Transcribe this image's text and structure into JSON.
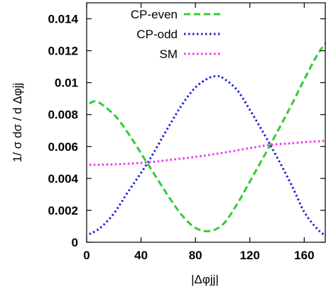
{
  "chart_data": {
    "type": "line",
    "xlabel": "|Δφjj|",
    "ylabel": "1/ σ dσ / d Δφjj",
    "xlim": [
      0,
      176
    ],
    "ylim": [
      0,
      0.015
    ],
    "x_ticks": [
      "0",
      "40",
      "80",
      "120",
      "160"
    ],
    "y_ticks": [
      "0",
      "0.002",
      "0.004",
      "0.006",
      "0.008",
      "0.01",
      "0.012",
      "0.014"
    ],
    "legend_position": "top-left",
    "grid": false,
    "series": [
      {
        "name": "CP-even",
        "color": "#33cc33",
        "style": "dashed",
        "x": [
          2,
          8,
          20,
          30,
          45,
          60,
          70,
          80,
          90,
          100,
          110,
          120,
          135,
          150,
          160,
          170,
          176
        ],
        "y": [
          0.0087,
          0.0088,
          0.008,
          0.0069,
          0.0049,
          0.0029,
          0.0017,
          0.0009,
          0.0007,
          0.0011,
          0.0023,
          0.0038,
          0.0061,
          0.0085,
          0.0102,
          0.0118,
          0.0125
        ]
      },
      {
        "name": "CP-odd",
        "color": "#2222dd",
        "style": "dotted",
        "x": [
          2,
          10,
          20,
          30,
          45,
          60,
          70,
          80,
          90,
          96,
          100,
          110,
          120,
          135,
          150,
          160,
          170,
          176
        ],
        "y": [
          0.0005,
          0.0009,
          0.0018,
          0.0031,
          0.005,
          0.0072,
          0.0086,
          0.0097,
          0.0103,
          0.0104,
          0.0103,
          0.0096,
          0.0083,
          0.0061,
          0.0037,
          0.0019,
          0.0008,
          0.0004
        ]
      },
      {
        "name": "SM",
        "color": "#ee33ee",
        "style": "dotted",
        "x": [
          2,
          20,
          45,
          60,
          80,
          100,
          120,
          135,
          150,
          165,
          176
        ],
        "y": [
          0.00485,
          0.00488,
          0.005,
          0.00515,
          0.00535,
          0.0056,
          0.0059,
          0.0061,
          0.0062,
          0.0063,
          0.00635
        ]
      }
    ]
  }
}
